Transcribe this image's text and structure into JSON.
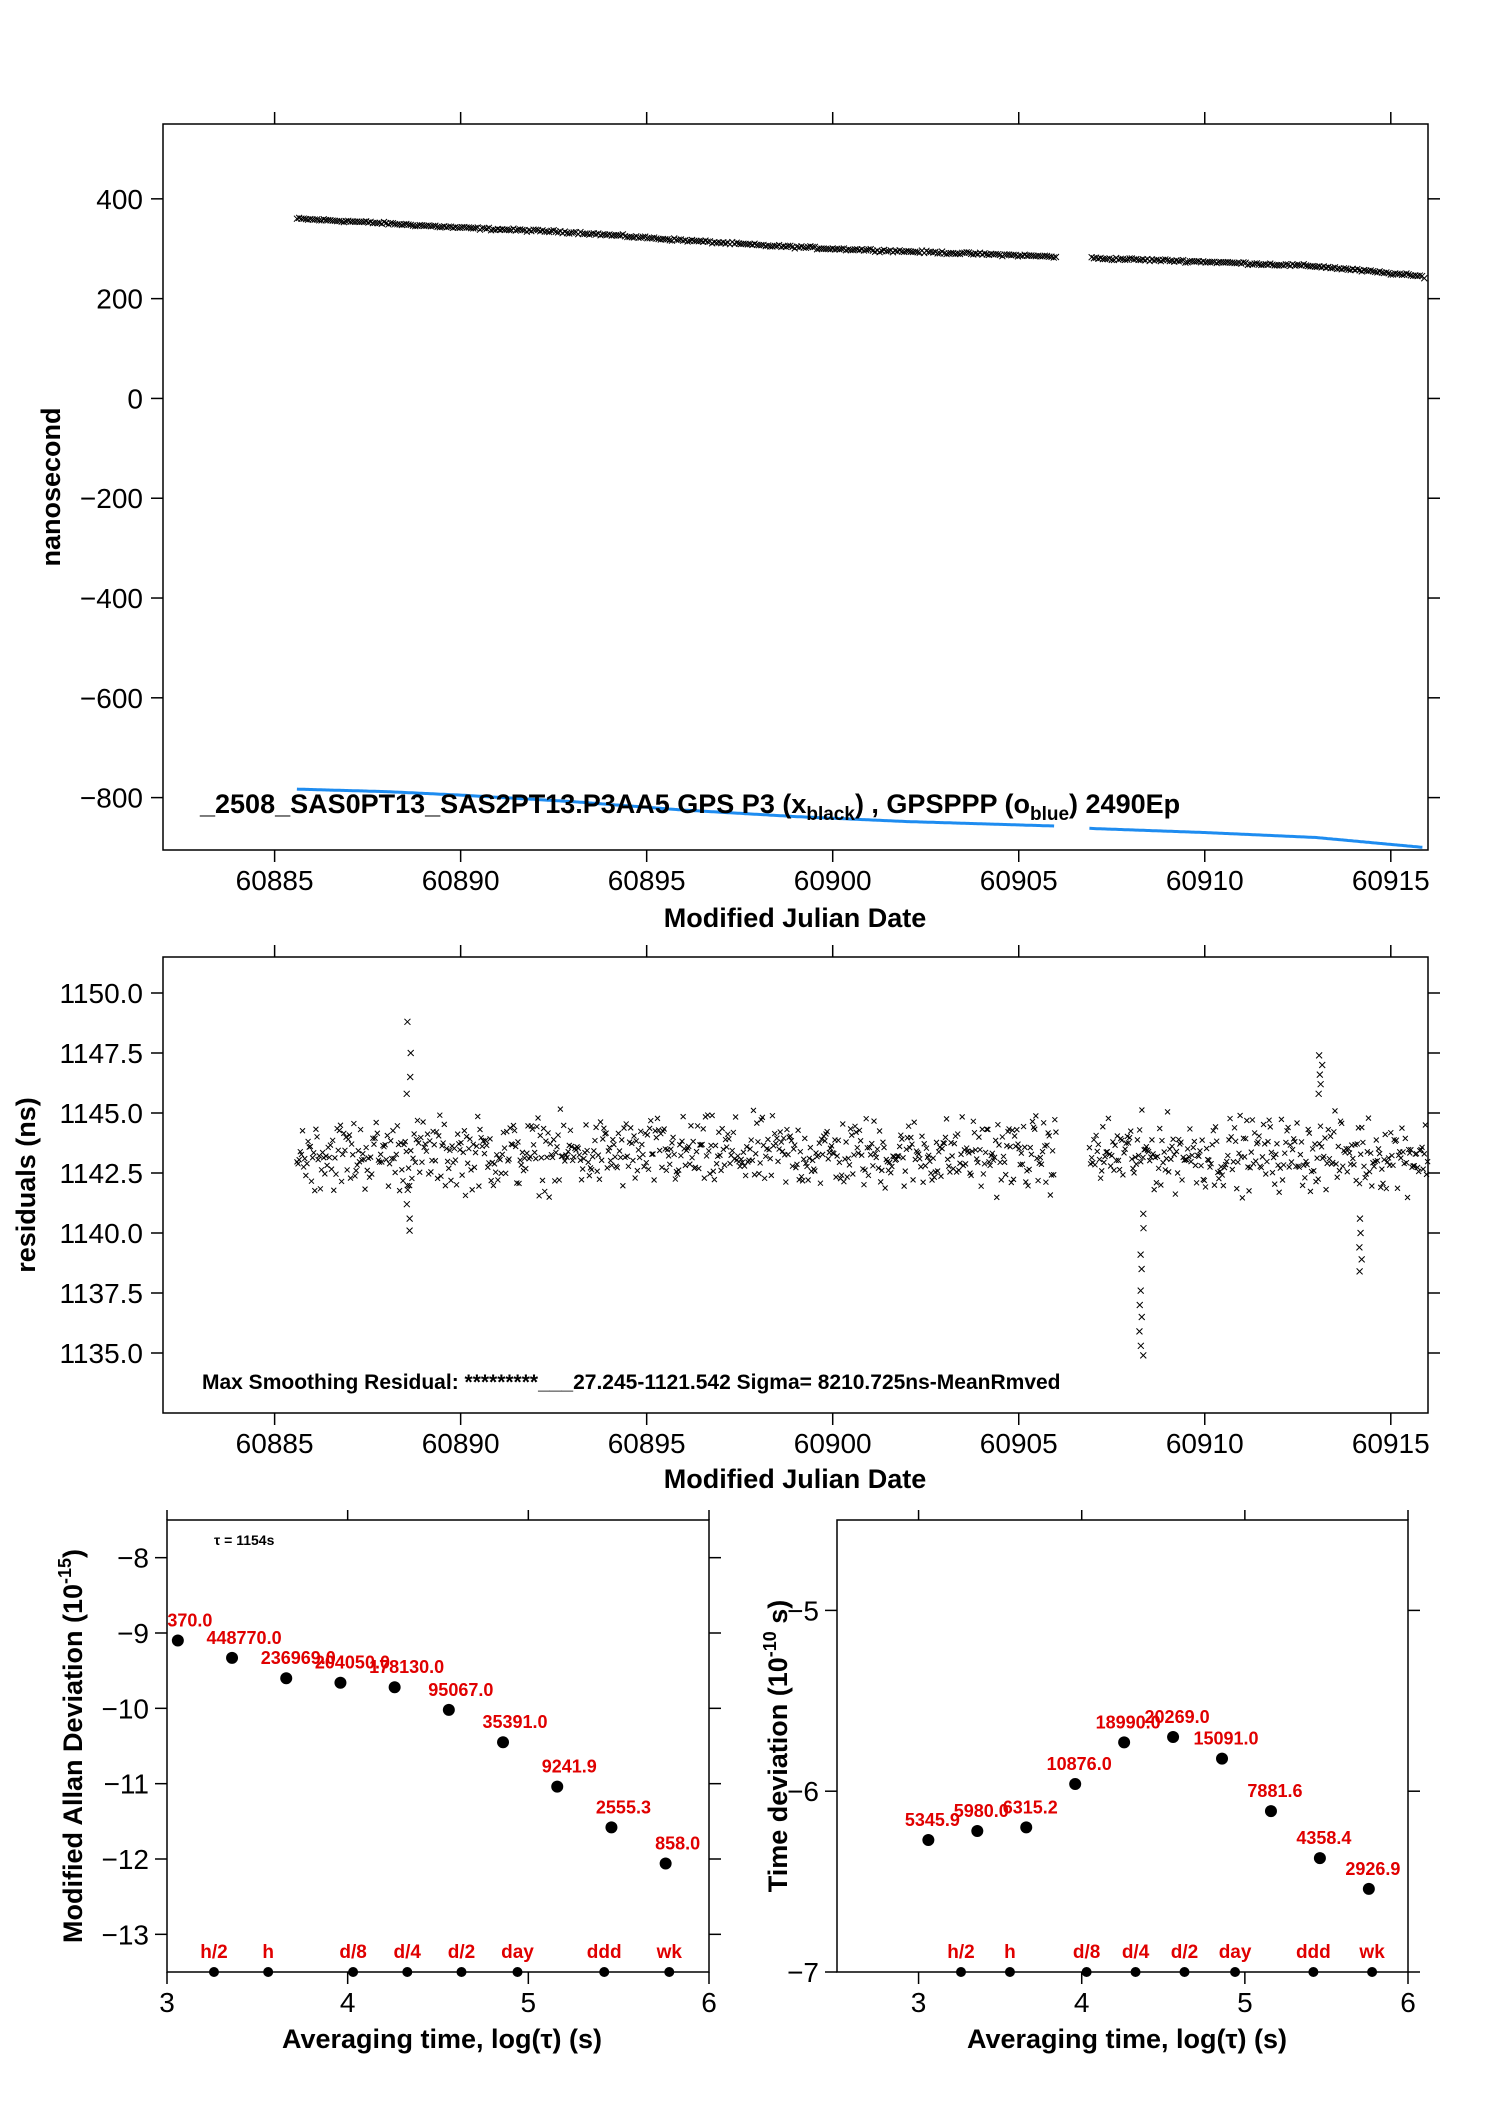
{
  "chart_data": [
    {
      "type": "scatter",
      "id": "phase",
      "xlabel": "Modified Julian Date",
      "ylabel": "nanosecond",
      "xlim": [
        60882,
        60916
      ],
      "ylim": [
        -905,
        550
      ],
      "xticks": [
        60885,
        60890,
        60895,
        60900,
        60905,
        60910,
        60915
      ],
      "yticks": [
        400,
        200,
        0,
        -200,
        -400,
        -600,
        -800
      ],
      "annotation": {
        "prefix": "_2508_SAS0PT13_SAS2PT13.P3AA5     GPS P3 (x",
        "sub1": "black",
        "mid": ") ,  GPSPPP (o",
        "sub2": "blue",
        "suffix": ")  2490Ep"
      },
      "series": [
        {
          "marker": "x",
          "color": "#000000",
          "points": [
            [
              60885.6,
              360
            ],
            [
              60887,
              355
            ],
            [
              60890,
              342
            ],
            [
              60893,
              333
            ],
            [
              60895,
              322
            ],
            [
              60898,
              307
            ],
            [
              60900,
              300
            ],
            [
              60903,
              292
            ],
            [
              60906,
              284
            ],
            [
              60907,
              281
            ],
            [
              60910,
              274
            ],
            [
              60913,
              265
            ],
            [
              60915.9,
              244
            ]
          ]
        },
        {
          "marker": "o",
          "color": "#1e8cf0",
          "points": [
            [
              60885.6,
              -783
            ],
            [
              60888,
              -788
            ],
            [
              60890,
              -795
            ],
            [
              60893,
              -808
            ],
            [
              60896,
              -825
            ],
            [
              60899,
              -838
            ],
            [
              60902,
              -848
            ],
            [
              60906,
              -857
            ],
            [
              60907,
              -862
            ],
            [
              60910,
              -870
            ],
            [
              60913,
              -880
            ],
            [
              60915.9,
              -900
            ]
          ]
        }
      ]
    },
    {
      "type": "scatter",
      "id": "residuals",
      "xlabel": "Modified Julian Date",
      "ylabel": "residuals (ns)",
      "xlim": [
        60882,
        60916
      ],
      "ylim": [
        1132.5,
        1151.5
      ],
      "xticks": [
        60885,
        60890,
        60895,
        60900,
        60905,
        60910,
        60915
      ],
      "yticks": [
        "1150.0",
        "1147.5",
        "1145.0",
        "1142.5",
        "1140.0",
        "1137.5",
        "1135.0"
      ],
      "yticks_values": [
        1150,
        1147.5,
        1145,
        1142.5,
        1140,
        1137.5,
        1135
      ],
      "annotation": "Max Smoothing Residual: *********___27.245-1121.542  Sigma= 8210.725ns-MeanRmved",
      "marker": "x",
      "color": "#000000",
      "mean": 1143.3,
      "spread": 0.8,
      "segments": [
        [
          60885.6,
          60906.0
        ],
        [
          60906.9,
          60916
        ]
      ],
      "excursions": [
        {
          "x": 60888.6,
          "values": [
            1148.8,
            1147.5,
            1146.5,
            1145.8,
            1141.8,
            1141.2,
            1140.6,
            1140.1
          ]
        },
        {
          "x": 60908.3,
          "values": [
            1140.8,
            1140.2,
            1139.1,
            1138.5,
            1137.6,
            1137.0,
            1136.5,
            1135.9,
            1135.3,
            1134.9
          ]
        },
        {
          "x": 60913.1,
          "values": [
            1147.4,
            1147.0,
            1146.6,
            1146.2,
            1145.8
          ]
        },
        {
          "x": 60914.2,
          "values": [
            1140.6,
            1140.0,
            1139.4,
            1138.9,
            1138.4
          ]
        }
      ]
    },
    {
      "type": "scatter",
      "id": "mdev",
      "xlabel": "Averaging time, log(τ) (s)",
      "ylabel": "Modified Allan Deviation (10⁻¹⁵)",
      "ylabel_main": "Modified Allan Deviation (10",
      "ylabel_sup": "-15",
      "ylabel_close": ")",
      "xlim": [
        3,
        6
      ],
      "ylim": [
        -13.5,
        -7.5
      ],
      "xticks": [
        3,
        4,
        5,
        6
      ],
      "yticks": [
        -8,
        -9,
        -10,
        -11,
        -12,
        -13
      ],
      "tau_note": "τ = 1154s",
      "points": [
        {
          "x": 3.06,
          "y": -9.1,
          "label": "370.0"
        },
        {
          "x": 3.36,
          "y": -9.33,
          "label": "448770.0"
        },
        {
          "x": 3.66,
          "y": -9.6,
          "label": "236969.0"
        },
        {
          "x": 3.96,
          "y": -9.66,
          "label": "204050.0"
        },
        {
          "x": 4.26,
          "y": -9.72,
          "label": "178130.0"
        },
        {
          "x": 4.56,
          "y": -10.02,
          "label": "95067.0"
        },
        {
          "x": 4.86,
          "y": -10.45,
          "label": "35391.0"
        },
        {
          "x": 5.16,
          "y": -11.04,
          "label": "9241.9"
        },
        {
          "x": 5.46,
          "y": -11.58,
          "label": "2555.3"
        },
        {
          "x": 5.76,
          "y": -12.06,
          "label": "858.0"
        }
      ],
      "markers": [
        {
          "x": 3.26,
          "label": "h/2"
        },
        {
          "x": 3.56,
          "label": "h"
        },
        {
          "x": 4.03,
          "label": "d/8"
        },
        {
          "x": 4.33,
          "label": "d/4"
        },
        {
          "x": 4.63,
          "label": "d/2"
        },
        {
          "x": 4.94,
          "label": "day"
        },
        {
          "x": 5.42,
          "label": "ddd"
        },
        {
          "x": 5.78,
          "label": "wk"
        }
      ]
    },
    {
      "type": "scatter",
      "id": "tdev",
      "xlabel": "Averaging time, log(τ) (s)",
      "ylabel": "Time deviation (10⁻¹⁰ s)",
      "ylabel_main": "Time deviation (10",
      "ylabel_sup": "-10",
      "ylabel_close": " s)",
      "xlim": [
        2.5,
        6
      ],
      "ylim": [
        -7,
        -4.5
      ],
      "xticks": [
        3,
        4,
        5,
        6
      ],
      "yticks": [
        -5,
        -6,
        -7
      ],
      "points": [
        {
          "x": 3.06,
          "y": -6.27,
          "label": "5345.9"
        },
        {
          "x": 3.36,
          "y": -6.22,
          "label": "5980.0"
        },
        {
          "x": 3.66,
          "y": -6.2,
          "label": "6315.2"
        },
        {
          "x": 3.96,
          "y": -5.96,
          "label": "10876.0"
        },
        {
          "x": 4.26,
          "y": -5.73,
          "label": "18990.0"
        },
        {
          "x": 4.56,
          "y": -5.7,
          "label": "20269.0"
        },
        {
          "x": 4.86,
          "y": -5.82,
          "label": "15091.0"
        },
        {
          "x": 5.16,
          "y": -6.11,
          "label": "7881.6"
        },
        {
          "x": 5.46,
          "y": -6.37,
          "label": "4358.4"
        },
        {
          "x": 5.76,
          "y": -6.54,
          "label": "2926.9"
        }
      ],
      "markers": [
        {
          "x": 3.26,
          "label": "h/2"
        },
        {
          "x": 3.56,
          "label": "h"
        },
        {
          "x": 4.03,
          "label": "d/8"
        },
        {
          "x": 4.33,
          "label": "d/4"
        },
        {
          "x": 4.63,
          "label": "d/2"
        },
        {
          "x": 4.94,
          "label": "day"
        },
        {
          "x": 5.42,
          "label": "ddd"
        },
        {
          "x": 5.78,
          "label": "wk"
        }
      ]
    }
  ]
}
